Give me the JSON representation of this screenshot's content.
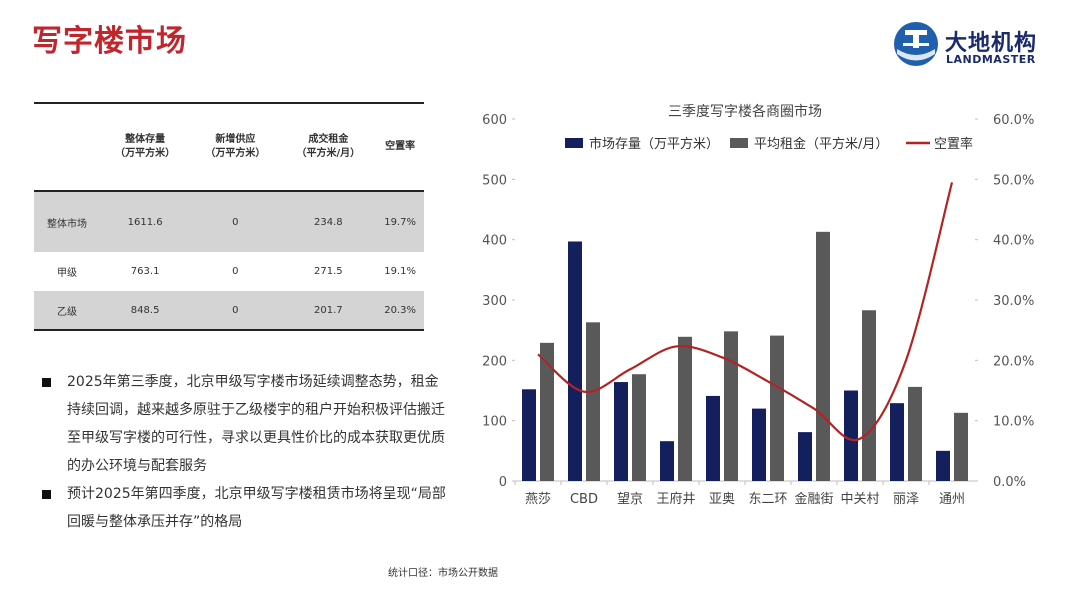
{
  "page": {
    "title": "写字楼市场",
    "logo_cn": "大地机构",
    "logo_en": "LANDMASTER",
    "source": "统计口径：市场公开数据"
  },
  "table": {
    "headers": [
      {
        "line1": "",
        "line2": ""
      },
      {
        "line1": "整体存量",
        "line2": "（万平方米）"
      },
      {
        "line1": "新增供应",
        "line2": "（万平方米）"
      },
      {
        "line1": "成交租金",
        "line2": "（平方米/月）"
      },
      {
        "line1": "空置率",
        "line2": ""
      }
    ],
    "rows": [
      {
        "name": "整体市场",
        "stock": "1611.6",
        "supply": "0",
        "rent": "234.8",
        "vacancy": "19.7%"
      },
      {
        "name": "甲级",
        "stock": "763.1",
        "supply": "0",
        "rent": "271.5",
        "vacancy": "19.1%"
      },
      {
        "name": "乙级",
        "stock": "848.5",
        "supply": "0",
        "rent": "201.7",
        "vacancy": "20.3%"
      }
    ]
  },
  "bullets": [
    "2025年第三季度，北京甲级写字楼市场延续调整态势，租金持续回调，越来越多原驻于乙级楼宇的租户开始积极评估搬迁至甲级写字楼的可行性，寻求以更具性价比的成本获取更优质的办公环境与配套服务",
    "预计2025年第四季度，北京甲级写字楼租赁市场将呈现“局部回暖与整体承压并存”的格局"
  ],
  "chart_data": {
    "type": "bar",
    "title": "三季度写字楼各商圈市场",
    "categories": [
      "燕莎",
      "CBD",
      "望京",
      "王府井",
      "亚奥",
      "东二环",
      "金融街",
      "中关村",
      "丽泽",
      "通州"
    ],
    "series": [
      {
        "name": "市场存量（万平方米）",
        "type": "bar",
        "axis": "left",
        "color": "#14205e",
        "values": [
          152,
          397,
          164,
          66,
          141,
          120,
          81,
          150,
          129,
          50
        ]
      },
      {
        "name": "平均租金（平方米/月）",
        "type": "bar",
        "axis": "left",
        "color": "#595959",
        "values": [
          229,
          263,
          177,
          239,
          248,
          241,
          413,
          283,
          156,
          113
        ]
      },
      {
        "name": "空置率",
        "type": "line",
        "axis": "right",
        "color": "#b22424",
        "values": [
          21.0,
          14.8,
          18.5,
          22.3,
          20.5,
          16.5,
          12.0,
          7.0,
          20.0,
          49.5
        ]
      }
    ],
    "left_axis": {
      "min": 0,
      "max": 600,
      "ticks": [
        "0",
        "100",
        "200",
        "300",
        "400",
        "500",
        "600"
      ]
    },
    "right_axis": {
      "min": 0,
      "max": 60,
      "ticks": [
        "0.0%",
        "10.0%",
        "20.0%",
        "30.0%",
        "40.0%",
        "50.0%",
        "60.0%"
      ]
    },
    "legend_position": "top",
    "grid": false
  }
}
